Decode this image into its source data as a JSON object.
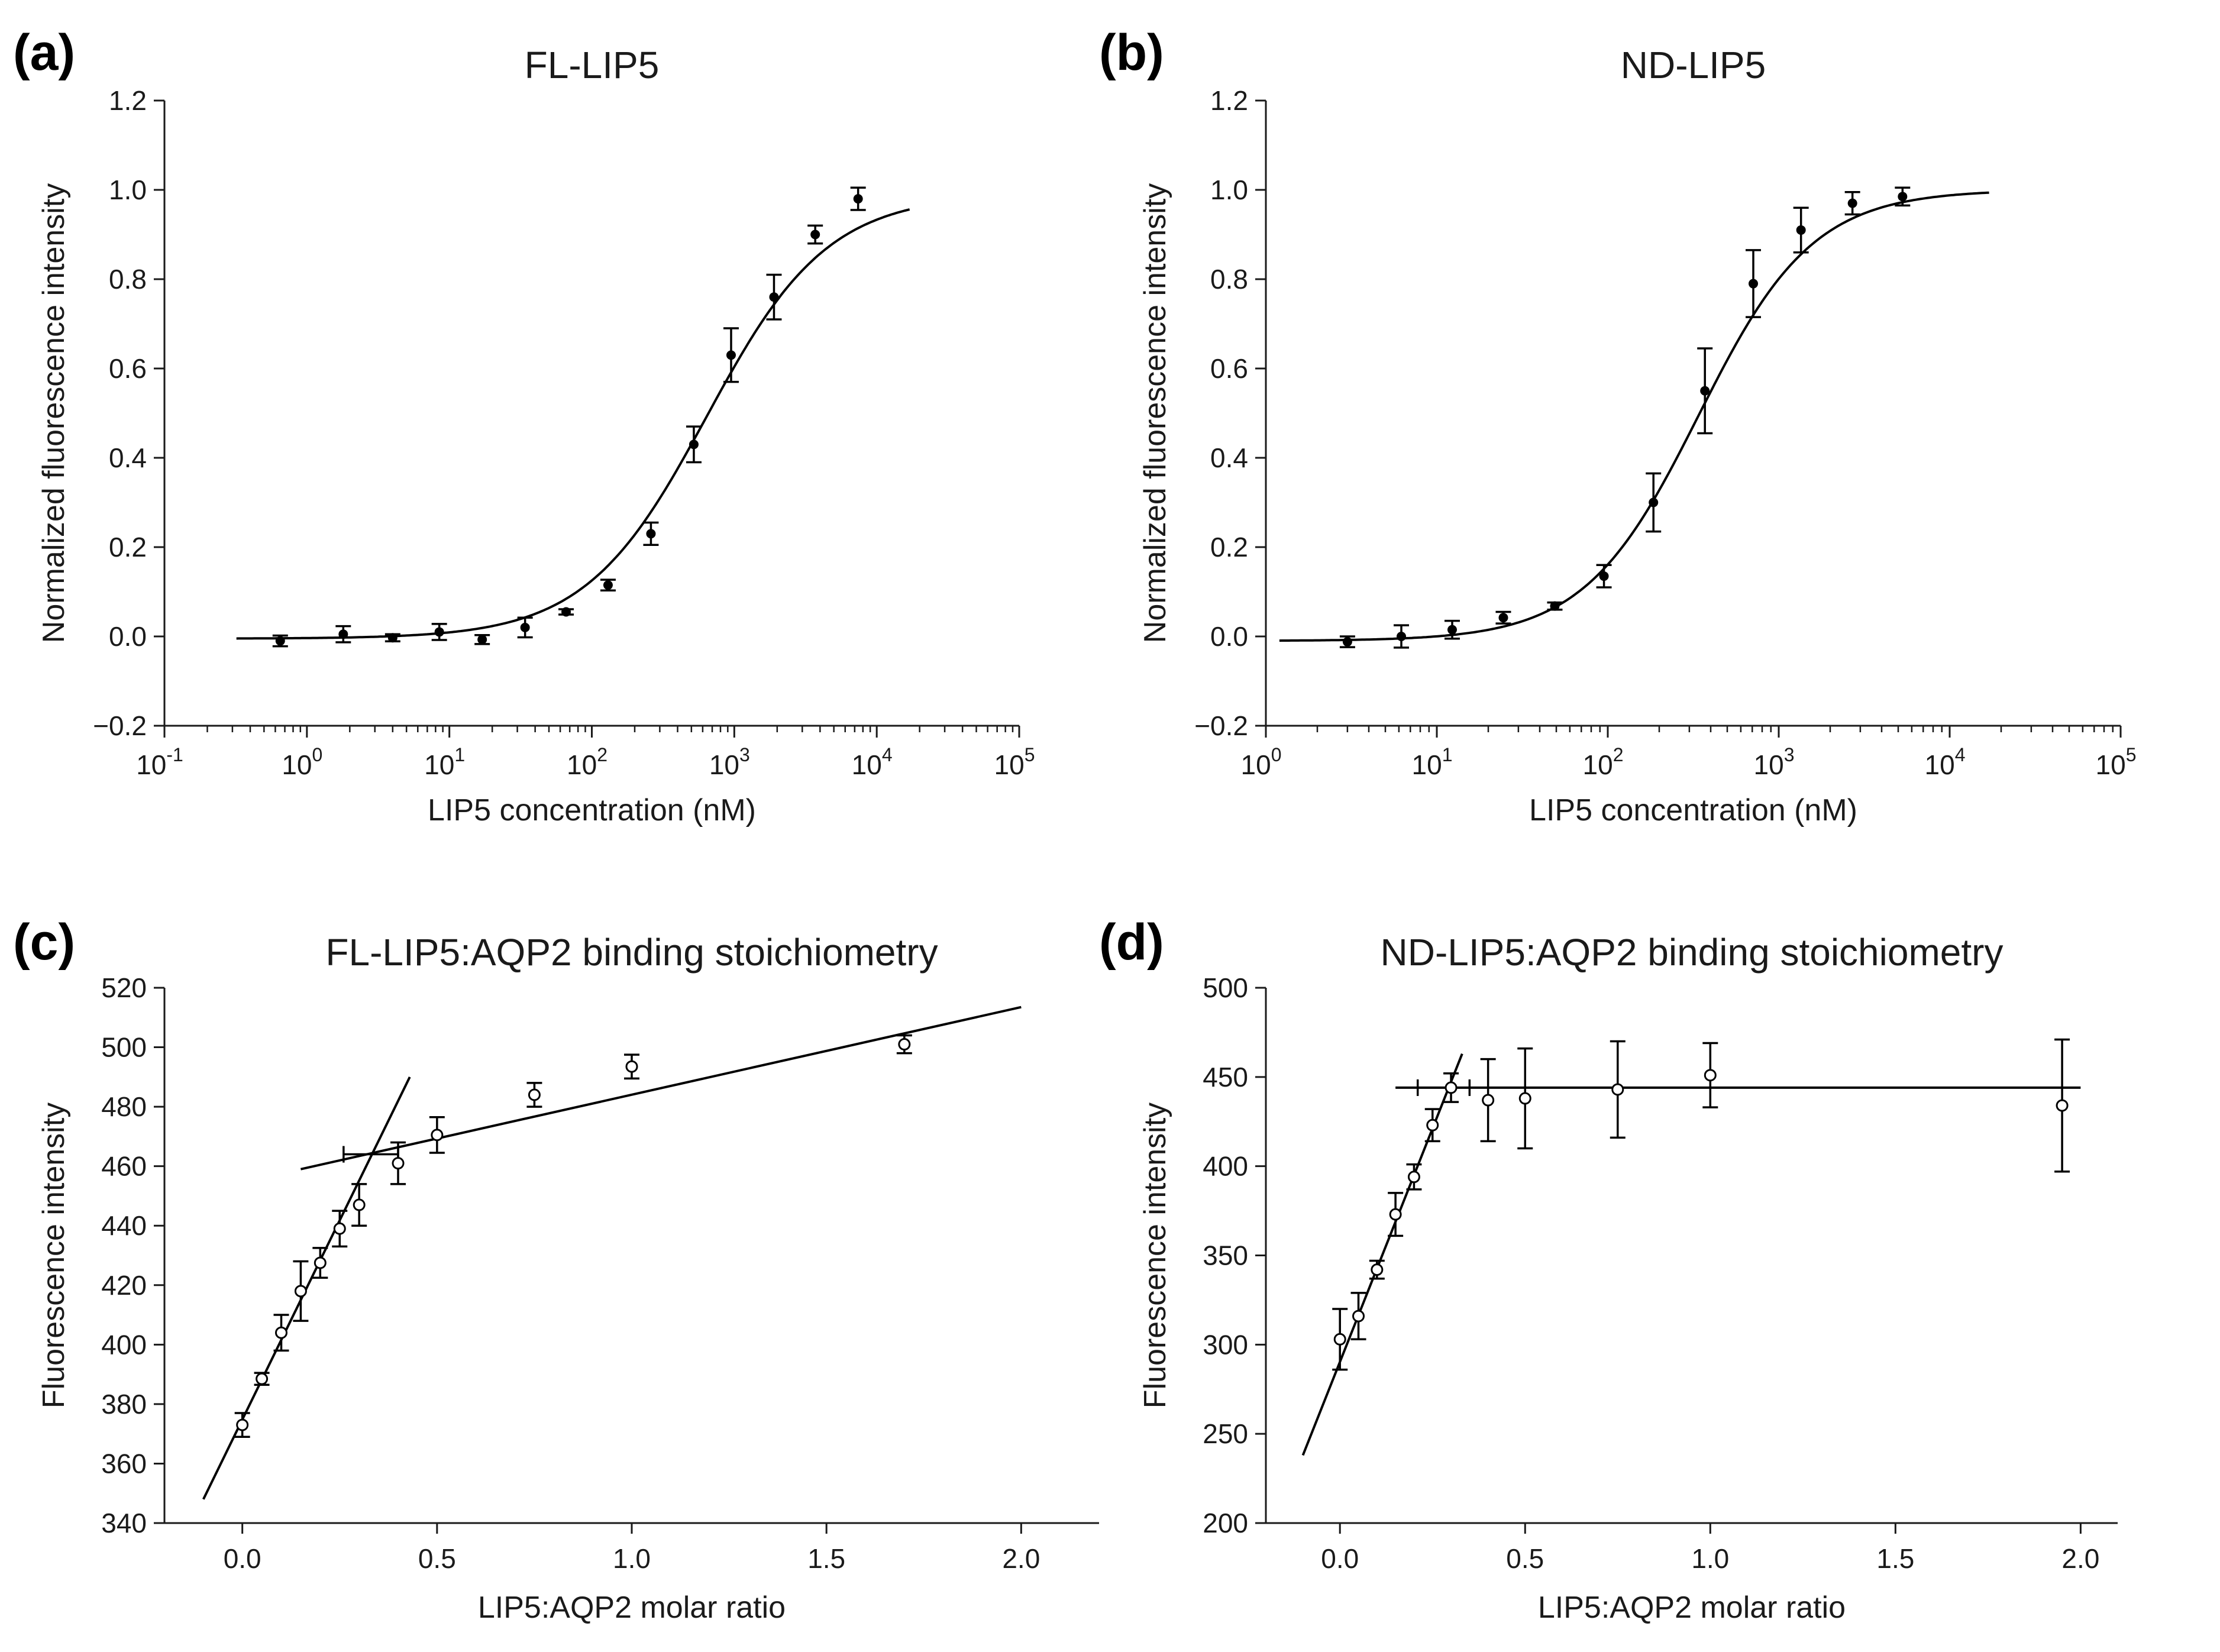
{
  "chart_data": [
    {
      "id": "a",
      "panel_label": "(a)",
      "type": "scatter",
      "title": "FL-LIP5",
      "xlabel": "LIP5 concentration (nM)",
      "ylabel": "Normalized fluorescence intensity",
      "xscale": "log",
      "xlim_exp": [
        -1,
        5
      ],
      "xticks": [
        {
          "base": "10",
          "exp": "-1"
        },
        {
          "base": "10",
          "exp": "0"
        },
        {
          "base": "10",
          "exp": "1"
        },
        {
          "base": "10",
          "exp": "2"
        },
        {
          "base": "10",
          "exp": "3"
        },
        {
          "base": "10",
          "exp": "4"
        },
        {
          "base": "10",
          "exp": "5"
        }
      ],
      "ylim": [
        -0.2,
        1.2
      ],
      "yticks": [
        "−0.2",
        "0.0",
        "0.2",
        "0.4",
        "0.6",
        "0.8",
        "1.0",
        "1.2"
      ],
      "marker": "filled",
      "points": [
        {
          "x": 0.65,
          "y": -0.01,
          "err": 0.012
        },
        {
          "x": 1.8,
          "y": 0.005,
          "err": 0.018
        },
        {
          "x": 4.0,
          "y": -0.003,
          "err": 0.008
        },
        {
          "x": 8.5,
          "y": 0.01,
          "err": 0.018
        },
        {
          "x": 17,
          "y": -0.007,
          "err": 0.01
        },
        {
          "x": 34,
          "y": 0.02,
          "err": 0.022
        },
        {
          "x": 66,
          "y": 0.055,
          "err": 0.006
        },
        {
          "x": 130,
          "y": 0.115,
          "err": 0.012
        },
        {
          "x": 260,
          "y": 0.23,
          "err": 0.025
        },
        {
          "x": 520,
          "y": 0.43,
          "err": 0.04
        },
        {
          "x": 950,
          "y": 0.63,
          "err": 0.06
        },
        {
          "x": 1900,
          "y": 0.76,
          "err": 0.05
        },
        {
          "x": 3700,
          "y": 0.9,
          "err": 0.02
        },
        {
          "x": 7400,
          "y": 0.98,
          "err": 0.025
        }
      ],
      "fit": {
        "model": "sigmoid_log",
        "bottom": -0.005,
        "top": 0.99,
        "ec50": 640,
        "hill": 1.02,
        "x_range": [
          0.32,
          17000
        ]
      }
    },
    {
      "id": "b",
      "panel_label": "(b)",
      "type": "scatter",
      "title": "ND-LIP5",
      "xlabel": "LIP5 concentration (nM)",
      "ylabel": "Normalized fluorescence intensity",
      "xscale": "log",
      "xlim_exp": [
        0,
        5
      ],
      "xticks": [
        {
          "base": "10",
          "exp": "0"
        },
        {
          "base": "10",
          "exp": "1"
        },
        {
          "base": "10",
          "exp": "2"
        },
        {
          "base": "10",
          "exp": "3"
        },
        {
          "base": "10",
          "exp": "4"
        },
        {
          "base": "10",
          "exp": "5"
        }
      ],
      "ylim": [
        -0.2,
        1.2
      ],
      "yticks": [
        "−0.2",
        "0.0",
        "0.2",
        "0.4",
        "0.6",
        "0.8",
        "1.0",
        "1.2"
      ],
      "marker": "filled",
      "points": [
        {
          "x": 3.0,
          "y": -0.012,
          "err": 0.012
        },
        {
          "x": 6.2,
          "y": 0.0,
          "err": 0.025
        },
        {
          "x": 12.3,
          "y": 0.015,
          "err": 0.02
        },
        {
          "x": 24.5,
          "y": 0.042,
          "err": 0.013
        },
        {
          "x": 49,
          "y": 0.068,
          "err": 0.008
        },
        {
          "x": 95,
          "y": 0.135,
          "err": 0.025
        },
        {
          "x": 185,
          "y": 0.3,
          "err": 0.065
        },
        {
          "x": 370,
          "y": 0.55,
          "err": 0.095
        },
        {
          "x": 710,
          "y": 0.79,
          "err": 0.075
        },
        {
          "x": 1350,
          "y": 0.91,
          "err": 0.05
        },
        {
          "x": 2700,
          "y": 0.97,
          "err": 0.025
        },
        {
          "x": 5300,
          "y": 0.985,
          "err": 0.02
        }
      ],
      "fit": {
        "model": "sigmoid_log",
        "bottom": -0.01,
        "top": 1.0,
        "ec50": 340,
        "hill": 1.3,
        "x_range": [
          1.2,
          17000
        ]
      }
    },
    {
      "id": "c",
      "panel_label": "(c)",
      "type": "scatter",
      "title": "FL-LIP5:AQP2 binding stoichiometry",
      "xlabel": "LIP5:AQP2 molar ratio",
      "ylabel": "Fluorescence intensity",
      "xscale": "linear",
      "xlim": [
        -0.2,
        2.2
      ],
      "xticks": [
        "0.0",
        "0.5",
        "1.0",
        "1.5",
        "2.0"
      ],
      "ylim": [
        340,
        520
      ],
      "yticks": [
        "340",
        "360",
        "380",
        "400",
        "420",
        "440",
        "460",
        "480",
        "500",
        "520"
      ],
      "marker": "open",
      "points": [
        {
          "x": 0.0,
          "y": 373,
          "err": 4
        },
        {
          "x": 0.05,
          "y": 388.5,
          "err": 2
        },
        {
          "x": 0.1,
          "y": 404,
          "err": 6
        },
        {
          "x": 0.15,
          "y": 418,
          "err": 10
        },
        {
          "x": 0.2,
          "y": 427.5,
          "err": 5
        },
        {
          "x": 0.25,
          "y": 439,
          "err": 6
        },
        {
          "x": 0.3,
          "y": 447,
          "err": 7
        },
        {
          "x": 0.4,
          "y": 461,
          "err": 7
        },
        {
          "x": 0.5,
          "y": 470.5,
          "err": 6
        },
        {
          "x": 0.75,
          "y": 484,
          "err": 4
        },
        {
          "x": 1.0,
          "y": 493.5,
          "err": 4
        },
        {
          "x": 1.7,
          "y": 501,
          "err": 3
        }
      ],
      "lines": [
        {
          "x": [
            -0.1,
            0.43
          ],
          "y": [
            348,
            490
          ]
        },
        {
          "x": [
            0.15,
            2.0
          ],
          "y": [
            459,
            513.5
          ]
        }
      ],
      "xerror": {
        "x": 0.33,
        "y": 464,
        "err": 0.07
      }
    },
    {
      "id": "d",
      "panel_label": "(d)",
      "type": "scatter",
      "title": "ND-LIP5:AQP2 binding stoichiometry",
      "xlabel": "LIP5:AQP2 molar ratio",
      "ylabel": "Fluorescence intensity",
      "xscale": "linear",
      "xlim": [
        -0.2,
        2.1
      ],
      "xticks": [
        "0.0",
        "0.5",
        "1.0",
        "1.5",
        "2.0"
      ],
      "ylim": [
        200,
        500
      ],
      "yticks": [
        "200",
        "250",
        "300",
        "350",
        "400",
        "450",
        "500"
      ],
      "marker": "open",
      "points": [
        {
          "x": 0.0,
          "y": 303,
          "err": 17
        },
        {
          "x": 0.05,
          "y": 316,
          "err": 13
        },
        {
          "x": 0.1,
          "y": 342,
          "err": 5
        },
        {
          "x": 0.15,
          "y": 373,
          "err": 12
        },
        {
          "x": 0.2,
          "y": 394,
          "err": 7
        },
        {
          "x": 0.25,
          "y": 423,
          "err": 9
        },
        {
          "x": 0.3,
          "y": 444,
          "err": 8
        },
        {
          "x": 0.4,
          "y": 437,
          "err": 23
        },
        {
          "x": 0.5,
          "y": 438,
          "err": 28
        },
        {
          "x": 0.75,
          "y": 443,
          "err": 27
        },
        {
          "x": 1.0,
          "y": 451,
          "err": 18
        },
        {
          "x": 1.95,
          "y": 434,
          "err": 37
        }
      ],
      "lines": [
        {
          "x": [
            -0.1,
            0.33
          ],
          "y": [
            238,
            463
          ]
        },
        {
          "x": [
            0.15,
            2.0
          ],
          "y": [
            444,
            444
          ]
        }
      ],
      "xerror": {
        "x": 0.28,
        "y": 444,
        "err": 0.07
      }
    }
  ]
}
